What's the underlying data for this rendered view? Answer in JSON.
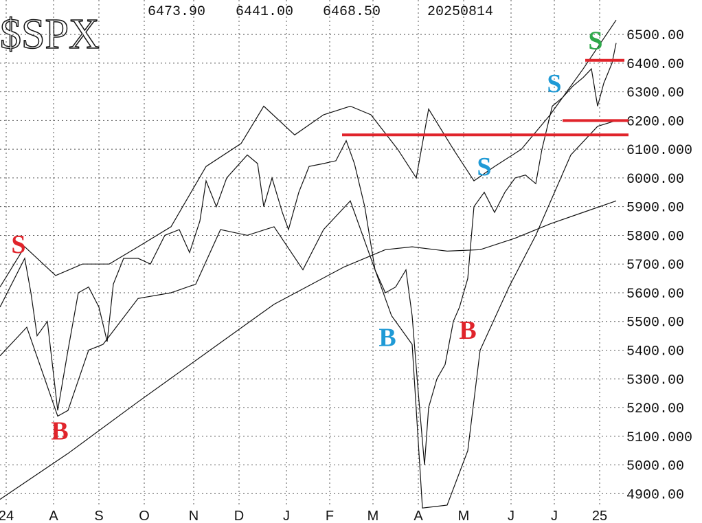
{
  "chart_data": {
    "type": "line",
    "title": "$SPX",
    "header_values": [
      "6473.90",
      "6441.00",
      "6468.50",
      "20250814"
    ],
    "xlim": [
      0,
      300
    ],
    "ylim": [
      4860,
      6620
    ],
    "grid": true,
    "xticks": [
      {
        "value": 3,
        "label": "24"
      },
      {
        "value": 26,
        "label": "A"
      },
      {
        "value": 48,
        "label": "S"
      },
      {
        "value": 70,
        "label": "O"
      },
      {
        "value": 94,
        "label": "N"
      },
      {
        "value": 116,
        "label": "D"
      },
      {
        "value": 139,
        "label": "J"
      },
      {
        "value": 160,
        "label": "F"
      },
      {
        "value": 181,
        "label": "M"
      },
      {
        "value": 203,
        "label": "A"
      },
      {
        "value": 225,
        "label": "M"
      },
      {
        "value": 248,
        "label": "J"
      },
      {
        "value": 269,
        "label": "J"
      },
      {
        "value": 291,
        "label": "25"
      }
    ],
    "yticks": [
      {
        "value": 6500,
        "label": "6500.00"
      },
      {
        "value": 6400,
        "label": "6400.00"
      },
      {
        "value": 6300,
        "label": "6300.00"
      },
      {
        "value": 6200,
        "label": "6200.00"
      },
      {
        "value": 6100,
        "label": "6100.000"
      },
      {
        "value": 6000,
        "label": "6000.00"
      },
      {
        "value": 5900,
        "label": "5900.00"
      },
      {
        "value": 5800,
        "label": "5800.00"
      },
      {
        "value": 5700,
        "label": "5700.00"
      },
      {
        "value": 5600,
        "label": "5600.00"
      },
      {
        "value": 5500,
        "label": "5500.00"
      },
      {
        "value": 5400,
        "label": "5400.00"
      },
      {
        "value": 5300,
        "label": "5300.00"
      },
      {
        "value": 5200,
        "label": "5200.00"
      },
      {
        "value": 5100,
        "label": "5100.000"
      },
      {
        "value": 5000,
        "label": "5000.00"
      },
      {
        "value": 4900,
        "label": "4900.00"
      }
    ],
    "series": [
      {
        "color": "#111111",
        "x": [
          0,
          12,
          15,
          18,
          23,
          28,
          33,
          38,
          43,
          48,
          52,
          55,
          60,
          67,
          73,
          80,
          87,
          92,
          97,
          100,
          105,
          110,
          115,
          120,
          125,
          128,
          132,
          137,
          140,
          145,
          150,
          157,
          163,
          168,
          172,
          177,
          182,
          187,
          192,
          197,
          200,
          203,
          206,
          208,
          212,
          216,
          220,
          223,
          227,
          230,
          235,
          240,
          245,
          250,
          255,
          260,
          263,
          268,
          273,
          278,
          283,
          287,
          290,
          293,
          297,
          299
        ],
        "values": [
          5550,
          5720,
          5600,
          5450,
          5500,
          5190,
          5400,
          5600,
          5620,
          5550,
          5430,
          5630,
          5720,
          5720,
          5700,
          5800,
          5820,
          5740,
          5850,
          5990,
          5900,
          6000,
          6040,
          6080,
          6050,
          5900,
          6000,
          5880,
          5820,
          5950,
          6040,
          6050,
          6060,
          6130,
          6050,
          5900,
          5680,
          5600,
          5620,
          5680,
          5520,
          5250,
          5000,
          5200,
          5300,
          5350,
          5500,
          5550,
          5650,
          5900,
          5950,
          5880,
          5950,
          6000,
          6010,
          5980,
          6100,
          6250,
          6280,
          6320,
          6350,
          6380,
          6250,
          6330,
          6400,
          6470
        ]
      },
      {
        "color": "#111111",
        "x": [
          0,
          33,
          67,
          100,
          133,
          167,
          187,
          200,
          217,
          233,
          250,
          267,
          283,
          299
        ],
        "values": [
          4880,
          5040,
          5220,
          5390,
          5560,
          5690,
          5750,
          5760,
          5745,
          5750,
          5790,
          5840,
          5880,
          5920
        ]
      },
      {
        "color": "#111111",
        "x": [
          0,
          12,
          27,
          40,
          53,
          67,
          83,
          100,
          117,
          128,
          143,
          157,
          170,
          180,
          193,
          202,
          208,
          220,
          230,
          240,
          253,
          267,
          283,
          299
        ],
        "values": [
          5620,
          5760,
          5660,
          5700,
          5700,
          5760,
          5830,
          6040,
          6120,
          6250,
          6150,
          6220,
          6250,
          6220,
          6100,
          6000,
          6240,
          6100,
          5990,
          6040,
          6100,
          6220,
          6380,
          6550
        ]
      },
      {
        "color": "#111111",
        "x": [
          0,
          13,
          28,
          33,
          43,
          50,
          67,
          83,
          95,
          107,
          120,
          133,
          147,
          157,
          170,
          180,
          190,
          200,
          205,
          217,
          227,
          233,
          247,
          260,
          277,
          290,
          299
        ],
        "values": [
          5380,
          5480,
          5170,
          5190,
          5400,
          5420,
          5580,
          5600,
          5630,
          5820,
          5800,
          5830,
          5680,
          5820,
          5920,
          5720,
          5520,
          5420,
          4850,
          4860,
          5050,
          5400,
          5620,
          5800,
          6080,
          6180,
          6200
        ]
      }
    ],
    "hlines": [
      {
        "value": 6150,
        "x": [
          166,
          305
        ],
        "color": "#e0242b"
      },
      {
        "value": 6200,
        "x": [
          273,
          305
        ],
        "color": "#e0242b"
      },
      {
        "value": 6410,
        "x": [
          284,
          303
        ],
        "color": "#e0242b"
      }
    ],
    "annotations": [
      {
        "text": "S",
        "x": 9,
        "y": 5760,
        "color": "#e0242b"
      },
      {
        "text": "B",
        "x": 29,
        "y": 5110,
        "color": "#e0242b"
      },
      {
        "text": "B",
        "x": 188,
        "y": 5435,
        "color": "#1f9ad6"
      },
      {
        "text": "B",
        "x": 227,
        "y": 5460,
        "color": "#e0242b"
      },
      {
        "text": "S",
        "x": 235,
        "y": 6030,
        "color": "#1f9ad6"
      },
      {
        "text": "S",
        "x": 269,
        "y": 6320,
        "color": "#1f9ad6"
      },
      {
        "text": "S",
        "x": 289,
        "y": 6470,
        "color": "#2ea84a"
      }
    ]
  }
}
